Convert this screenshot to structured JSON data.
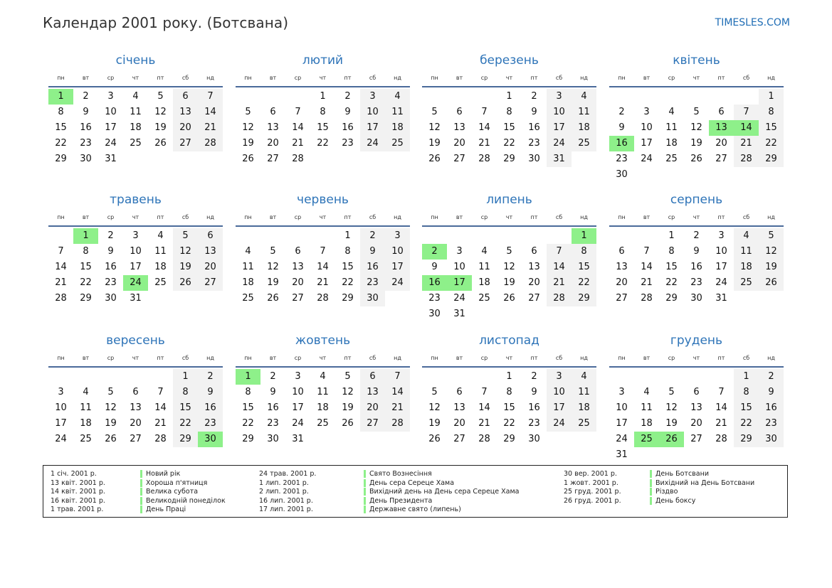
{
  "title": "Календар 2001 року. (Ботсвана)",
  "brand": "TIMESLES.COM",
  "weekdays": [
    "пн",
    "вт",
    "ср",
    "чт",
    "пт",
    "сб",
    "нд"
  ],
  "months": [
    {
      "name": "січень",
      "offset": 0,
      "days": 31,
      "holidays": [
        1
      ]
    },
    {
      "name": "лютий",
      "offset": 3,
      "days": 28,
      "holidays": []
    },
    {
      "name": "березень",
      "offset": 3,
      "days": 31,
      "holidays": []
    },
    {
      "name": "квітень",
      "offset": 6,
      "days": 30,
      "holidays": [
        13,
        14,
        16
      ]
    },
    {
      "name": "травень",
      "offset": 1,
      "days": 31,
      "holidays": [
        1,
        24
      ]
    },
    {
      "name": "червень",
      "offset": 4,
      "days": 30,
      "holidays": []
    },
    {
      "name": "липень",
      "offset": 6,
      "days": 31,
      "holidays": [
        1,
        2,
        16,
        17
      ]
    },
    {
      "name": "серпень",
      "offset": 2,
      "days": 31,
      "holidays": []
    },
    {
      "name": "вересень",
      "offset": 5,
      "days": 30,
      "holidays": [
        30
      ]
    },
    {
      "name": "жовтень",
      "offset": 0,
      "days": 31,
      "holidays": [
        1
      ]
    },
    {
      "name": "листопад",
      "offset": 3,
      "days": 30,
      "holidays": []
    },
    {
      "name": "грудень",
      "offset": 5,
      "days": 31,
      "holidays": [
        25,
        26
      ]
    }
  ],
  "legend": [
    [
      {
        "date": "1 січ. 2001 р.",
        "name": "Новий рік"
      },
      {
        "date": "13 квіт. 2001 р.",
        "name": "Хороша п'ятниця"
      },
      {
        "date": "14 квіт. 2001 р.",
        "name": "Велика субота"
      },
      {
        "date": "16 квіт. 2001 р.",
        "name": "Великодній понеділок"
      },
      {
        "date": "1 трав. 2001 р.",
        "name": "День Праці"
      }
    ],
    [
      {
        "date": "24 трав. 2001 р.",
        "name": "Свято Вознесіння"
      },
      {
        "date": "1 лип. 2001 р.",
        "name": "День сера Сереце Хама"
      },
      {
        "date": "2 лип. 2001 р.",
        "name": "Вихідний день на День сера Сереце Хама"
      },
      {
        "date": "16 лип. 2001 р.",
        "name": "День Президента"
      },
      {
        "date": "17 лип. 2001 р.",
        "name": "Державне свято (липень)"
      }
    ],
    [
      {
        "date": "30 вер. 2001 р.",
        "name": "День Ботсвани"
      },
      {
        "date": "1 жовт. 2001 р.",
        "name": "Вихідний на День Ботсвани"
      },
      {
        "date": "25 груд. 2001 р.",
        "name": "Різдво"
      },
      {
        "date": "26 груд. 2001 р.",
        "name": "День боксу"
      }
    ]
  ],
  "colors": {
    "accent": "#2e74b8",
    "holiday": "#8ef08a",
    "weekend": "#f2f2f2",
    "rule": "#4a6a9a"
  }
}
